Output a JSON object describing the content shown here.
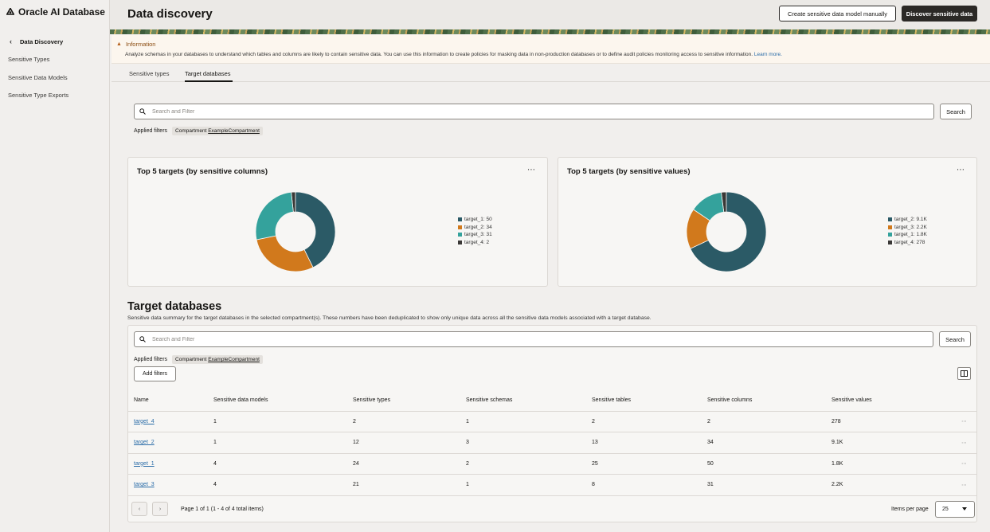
{
  "sidebar": {
    "brand": "Oracle AI Database",
    "back_label": "Data Discovery",
    "items": [
      {
        "label": "Sensitive Types"
      },
      {
        "label": "Sensitive Data Models"
      },
      {
        "label": "Sensitive Type Exports"
      }
    ]
  },
  "header": {
    "title": "Data discovery",
    "create_button": "Create sensitive data model manually",
    "discover_button": "Discover sensitive data"
  },
  "info": {
    "title": "Information",
    "text": "Analyze schemas in your databases to understand which tables and columns are likely to contain sensitive data. You can use this information to create policies for masking data in non-production databases or to define audit policies monitoring access to sensitive information.",
    "link": "Learn more."
  },
  "tabs": [
    {
      "label": "Sensitive types",
      "active": false
    },
    {
      "label": "Target databases",
      "active": true
    }
  ],
  "top_search": {
    "placeholder": "Search and Filter",
    "button": "Search",
    "applied_label": "Applied filters",
    "chip_key": "Compartment",
    "chip_value": "ExampleCompartment"
  },
  "chart_data": [
    {
      "type": "pie",
      "title": "Top 5 targets (by sensitive columns)",
      "donut": true,
      "legend_position": "right",
      "categories": [
        "target_1",
        "target_2",
        "target_3",
        "target_4"
      ],
      "values": [
        50,
        34,
        31,
        2
      ],
      "labels": [
        "target_1: 50",
        "target_2: 34",
        "target_3: 31",
        "target_4: 2"
      ],
      "colors": [
        "#2b5a66",
        "#d1791c",
        "#34a29c",
        "#3a3836"
      ]
    },
    {
      "type": "pie",
      "title": "Top 5 targets (by sensitive values)",
      "donut": true,
      "legend_position": "right",
      "categories": [
        "target_2",
        "target_3",
        "target_1",
        "target_4"
      ],
      "values": [
        9100,
        2200,
        1800,
        278
      ],
      "labels": [
        "target_2: 9.1K",
        "target_3: 2.2K",
        "target_1: 1.8K",
        "target_4: 278"
      ],
      "colors": [
        "#2b5a66",
        "#d1791c",
        "#34a29c",
        "#3a3836"
      ]
    }
  ],
  "more_icon": "⋯",
  "targets": {
    "title": "Target databases",
    "description": "Sensitive data summary for the target databases in the selected compartment(s). These numbers have been deduplicated to show only unique data across all the sensitive data models associated with a target database.",
    "search_placeholder": "Search and Filter",
    "search_button": "Search",
    "applied_label": "Applied filters",
    "chip_key": "Compartment",
    "chip_value": "ExampleCompartment",
    "add_filters": "Add filters",
    "columns": [
      "Name",
      "Sensitive data models",
      "Sensitive types",
      "Sensitive schemas",
      "Sensitive tables",
      "Sensitive columns",
      "Sensitive values"
    ],
    "rows": [
      [
        "target_4",
        "1",
        "2",
        "1",
        "2",
        "2",
        "278"
      ],
      [
        "target_2",
        "1",
        "12",
        "3",
        "13",
        "34",
        "9.1K"
      ],
      [
        "target_1",
        "4",
        "24",
        "2",
        "25",
        "50",
        "1.8K"
      ],
      [
        "target_3",
        "4",
        "21",
        "1",
        "8",
        "31",
        "2.2K"
      ]
    ],
    "pagination": "Page 1 of 1 (1 - 4 of 4 total items)",
    "items_per_page_label": "Items per page",
    "items_per_page": "25"
  }
}
